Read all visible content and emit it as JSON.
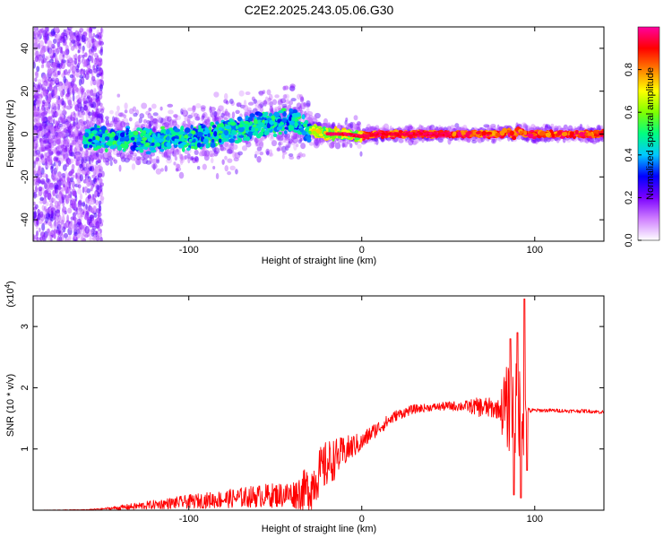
{
  "figure": {
    "title": "C2E2.2025.243.05.06.G30"
  },
  "chart_data": [
    {
      "type": "heatmap",
      "name": "spectrogram",
      "title": "C2E2.2025.243.05.06.G30",
      "xlabel": "Height of straight line (km)",
      "ylabel": "Frequency (Hz)",
      "xlim": [
        -190,
        140
      ],
      "ylim": [
        -50,
        50
      ],
      "xticks": [
        -100,
        0,
        100
      ],
      "yticks": [
        -40,
        -20,
        0,
        20,
        40
      ],
      "xtick_labels": [
        "-100",
        "0",
        "100"
      ],
      "ytick_labels": [
        "-40",
        "-20",
        "0",
        "20",
        "40"
      ],
      "colorbar": {
        "label": "Normalized spectral amplitude",
        "range": [
          0,
          1
        ],
        "ticks": [
          0.0,
          0.2,
          0.4,
          0.6,
          0.8
        ],
        "tick_labels": [
          "0.0",
          "0.2",
          "0.4",
          "0.6",
          "0.8"
        ],
        "colors": [
          "#ffffff",
          "#d080ff",
          "#7b00ff",
          "#0000ff",
          "#00c8ff",
          "#00ff80",
          "#80ff00",
          "#ffff00",
          "#ff8000",
          "#ff0000",
          "#ff00a0"
        ]
      },
      "ridge": {
        "x": [
          -190,
          -150,
          -120,
          -100,
          -90,
          -80,
          -70,
          -60,
          -50,
          -45,
          -40,
          -35,
          -30,
          -20,
          -10,
          0,
          10,
          30,
          60,
          80,
          85,
          88,
          90,
          95,
          110,
          140
        ],
        "y": [
          0,
          -2,
          -3,
          -2,
          -1,
          1,
          2,
          4,
          5,
          6,
          6,
          4,
          2,
          0,
          0,
          -1,
          0,
          0,
          0,
          0,
          1,
          -1,
          2,
          0,
          0,
          0
        ]
      }
    },
    {
      "type": "line",
      "name": "snr",
      "xlabel": "Height of straight line (km)",
      "ylabel": "SNR (10 * v/v)",
      "ylabel_scale": "(x10",
      "ylabel_exponent": "4",
      "ylabel_scale_close": ")",
      "xlim": [
        -190,
        140
      ],
      "ylim": [
        0,
        35000
      ],
      "xticks": [
        -100,
        0,
        100
      ],
      "yticks": [
        10000,
        20000,
        30000
      ],
      "xtick_labels": [
        "-100",
        "0",
        "100"
      ],
      "ytick_labels": [
        "1",
        "2",
        "3"
      ],
      "color": "#ff0000",
      "trend": {
        "x": [
          -190,
          -160,
          -140,
          -120,
          -100,
          -80,
          -60,
          -40,
          -30,
          -25,
          -20,
          -15,
          -10,
          -5,
          0,
          5,
          10,
          15,
          20,
          30,
          40,
          50,
          60,
          70,
          80,
          85,
          90,
          95,
          100,
          110,
          120,
          130,
          140
        ],
        "y": [
          0,
          50,
          400,
          900,
          1400,
          1800,
          2300,
          2600,
          3500,
          6000,
          7500,
          8500,
          9500,
          10500,
          11000,
          12500,
          13500,
          14500,
          15500,
          16500,
          16800,
          17000,
          17000,
          16800,
          16500,
          16500,
          16200,
          16200,
          16300,
          16300,
          16200,
          16200,
          16000
        ]
      },
      "noise": {
        "x": [
          -190,
          -150,
          -140,
          -40,
          -30,
          -20,
          -10,
          0,
          20,
          40,
          60,
          70,
          80,
          82,
          87,
          94,
          95,
          100,
          140
        ],
        "amp": [
          0,
          100,
          400,
          2200,
          4000,
          4000,
          2500,
          1500,
          900,
          600,
          900,
          1800,
          1500,
          6500,
          8000,
          8000,
          600,
          300,
          300
        ]
      },
      "spikes": [
        {
          "x": 86,
          "y": 28000
        },
        {
          "x": 88,
          "y": 2500
        },
        {
          "x": 90,
          "y": 29000
        },
        {
          "x": 92,
          "y": 2000
        },
        {
          "x": 94,
          "y": 34500
        },
        {
          "x": 95.5,
          "y": 6500
        }
      ]
    }
  ]
}
